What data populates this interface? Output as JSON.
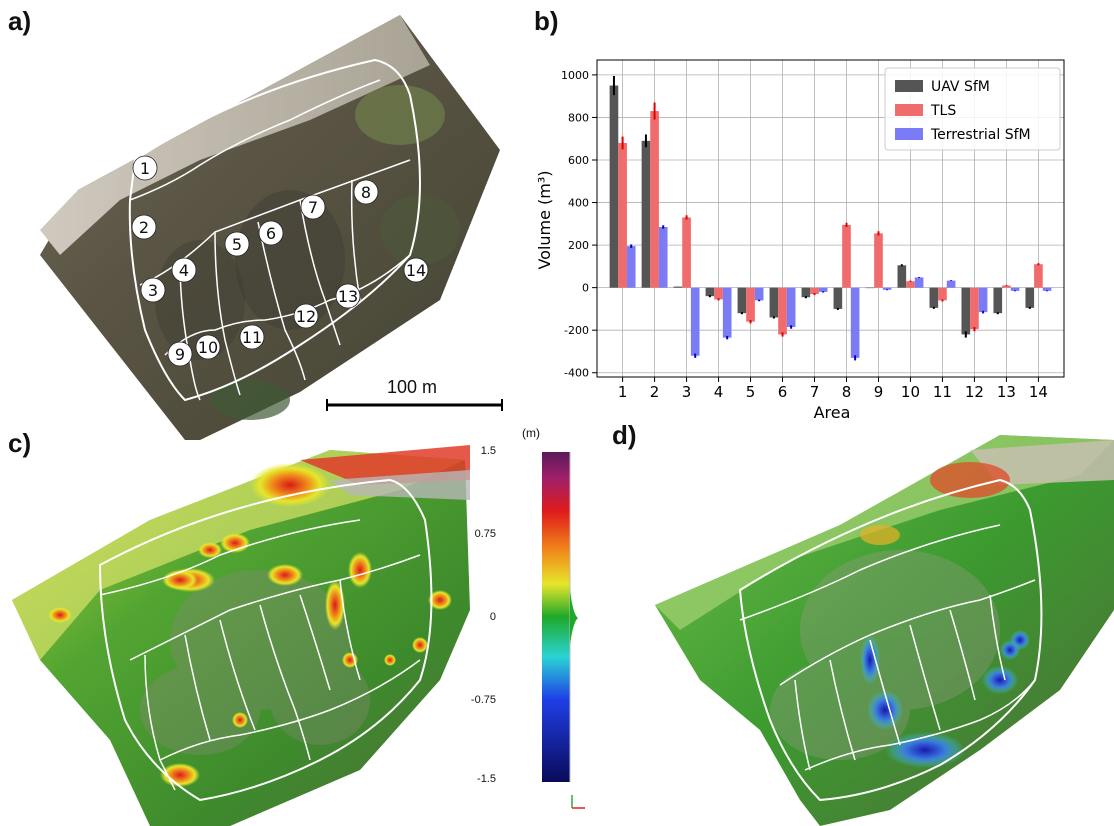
{
  "panels": {
    "a": "a)",
    "b": "b)",
    "c": "c)",
    "d": "d)"
  },
  "panel_a": {
    "area_labels": [
      "1",
      "2",
      "3",
      "4",
      "5",
      "6",
      "7",
      "8",
      "9",
      "10",
      "11",
      "12",
      "13",
      "14"
    ],
    "scale_label": "100 m"
  },
  "colorbar": {
    "unit": "(m)",
    "ticks": [
      "1.5",
      "0.75",
      "0",
      "-0.75",
      "-1.5"
    ]
  },
  "chart_data": {
    "type": "bar",
    "categories": [
      "1",
      "2",
      "3",
      "4",
      "5",
      "6",
      "7",
      "8",
      "9",
      "10",
      "11",
      "12",
      "13",
      "14"
    ],
    "xlabel": "Area",
    "ylabel": "Volume (m³)",
    "ylim": [
      -420,
      1070
    ],
    "yticks": [
      -400,
      -200,
      0,
      200,
      400,
      600,
      800,
      1000
    ],
    "grid": true,
    "legend_position": "top-right",
    "series": [
      {
        "name": "UAV SfM",
        "color": "#555555",
        "values": [
          950,
          690,
          5,
          -40,
          -120,
          -140,
          -45,
          -100,
          0,
          105,
          -95,
          -220,
          -120,
          -95
        ],
        "errors": [
          45,
          30,
          0,
          5,
          5,
          5,
          5,
          5,
          0,
          5,
          5,
          15,
          5,
          5
        ]
      },
      {
        "name": "TLS",
        "color": "#f06b6b",
        "values": [
          680,
          830,
          330,
          -55,
          -160,
          -220,
          -30,
          295,
          255,
          30,
          -60,
          -195,
          10,
          110
        ],
        "errors": [
          30,
          40,
          10,
          5,
          8,
          10,
          5,
          10,
          10,
          3,
          5,
          10,
          2,
          5
        ]
      },
      {
        "name": "Terrestrial SfM",
        "color": "#7b7bf5",
        "values": [
          195,
          285,
          -320,
          -235,
          -60,
          -185,
          -20,
          -330,
          -10,
          48,
          33,
          -115,
          -15,
          -15
        ],
        "errors": [
          8,
          8,
          10,
          8,
          4,
          8,
          3,
          12,
          2,
          2,
          2,
          6,
          2,
          2
        ]
      }
    ]
  }
}
